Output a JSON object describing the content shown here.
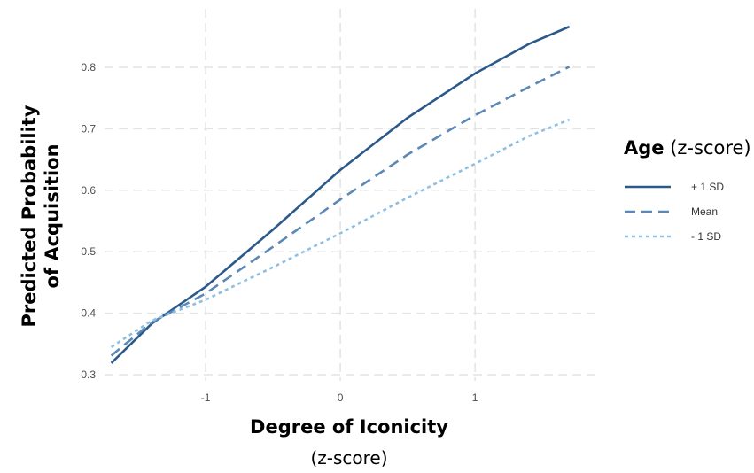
{
  "chart_data": {
    "type": "line",
    "xlabel": "Degree of Iconicity",
    "xlabel_sub": "(z-score)",
    "ylabel_line1": "Predicted Probability",
    "ylabel_line2": "of Acquisition",
    "xlim": [
      -1.75,
      1.9
    ],
    "ylim": [
      0.29,
      0.895
    ],
    "xticks": [
      -1,
      0,
      1
    ],
    "xtick_labels": [
      "-1",
      "0",
      "1"
    ],
    "yticks": [
      0.3,
      0.4,
      0.5,
      0.6,
      0.7,
      0.8
    ],
    "ytick_labels": [
      "0.3",
      "0.4",
      "0.5",
      "0.6",
      "0.7",
      "0.8"
    ],
    "grid": true,
    "legend": {
      "title_bold": "Age",
      "title_rest": " (z-score)",
      "placement": "right"
    },
    "series": [
      {
        "name": "+ 1 SD",
        "color": "#2b5a8a",
        "dash": "solid",
        "x": [
          -1.7,
          -1.4,
          -1.0,
          -0.5,
          0.0,
          0.5,
          1.0,
          1.4,
          1.7
        ],
        "y": [
          0.319,
          0.383,
          0.443,
          0.536,
          0.633,
          0.718,
          0.79,
          0.838,
          0.866
        ]
      },
      {
        "name": "Mean",
        "color": "#5b88b5",
        "dash": "dashed",
        "x": [
          -1.7,
          -1.4,
          -1.0,
          -0.5,
          0.0,
          0.5,
          1.0,
          1.4,
          1.7
        ],
        "y": [
          0.331,
          0.385,
          0.432,
          0.508,
          0.585,
          0.658,
          0.722,
          0.768,
          0.801
        ]
      },
      {
        "name": "- 1 SD",
        "color": "#8fc0e2",
        "dash": "dotted",
        "x": [
          -1.7,
          -1.4,
          -1.0,
          -0.5,
          0.0,
          0.5,
          1.0,
          1.4,
          1.7
        ],
        "y": [
          0.345,
          0.388,
          0.422,
          0.475,
          0.53,
          0.588,
          0.643,
          0.688,
          0.715
        ]
      }
    ]
  }
}
